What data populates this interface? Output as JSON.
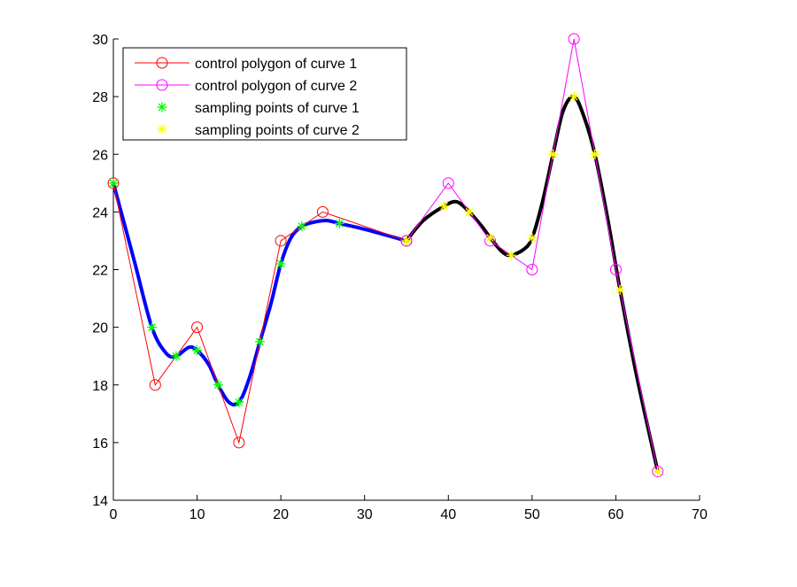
{
  "chart_data": {
    "type": "line",
    "title": "",
    "xlabel": "",
    "ylabel": "",
    "xlim": [
      0,
      70
    ],
    "ylim": [
      14,
      30
    ],
    "xticks": [
      "0",
      "10",
      "20",
      "30",
      "40",
      "50",
      "60",
      "70"
    ],
    "yticks": [
      "14",
      "16",
      "18",
      "20",
      "22",
      "24",
      "26",
      "28",
      "30"
    ],
    "grid": false,
    "legend_position": "top-left",
    "colors": {
      "polygon1": "#ff0000",
      "polygon2": "#ff00ff",
      "curve1": "#0000ff",
      "curve2": "#000000",
      "samples1": "#00ff00",
      "samples2": "#ffff00",
      "axes": "#000000"
    },
    "series": [
      {
        "name": "control polygon of curve 1",
        "marker": "circle",
        "x": [
          0,
          5,
          10,
          15,
          20,
          25,
          35
        ],
        "y": [
          25,
          18,
          20,
          16,
          23,
          24,
          23
        ]
      },
      {
        "name": "control polygon of curve 2",
        "marker": "circle",
        "x": [
          35,
          40,
          45,
          50,
          55,
          60,
          65
        ],
        "y": [
          23,
          25,
          23,
          22,
          30,
          22,
          15
        ]
      },
      {
        "name": "sampling points of curve 1",
        "marker": "asterisk",
        "x": [
          0,
          4.6,
          7.5,
          10,
          12.5,
          15,
          17.5,
          20,
          22.5,
          27,
          35
        ],
        "y": [
          25,
          20,
          19,
          19.2,
          18,
          17.4,
          19.5,
          22.2,
          23.5,
          23.6,
          23
        ]
      },
      {
        "name": "sampling points of curve 2",
        "marker": "asterisk",
        "x": [
          35,
          39.5,
          42.5,
          45,
          47.5,
          50,
          52.5,
          55,
          57.5,
          60.5,
          65
        ],
        "y": [
          23,
          24.2,
          24,
          23.1,
          22.5,
          23.1,
          26,
          28,
          26,
          21.3,
          15
        ]
      }
    ],
    "curves": [
      {
        "x": [
          0,
          2.5,
          4.6,
          6.3,
          7.5,
          9,
          10,
          11.4,
          12.5,
          13.8,
          15,
          16.2,
          17.5,
          18.8,
          20,
          21.2,
          22.5,
          24,
          25.5,
          27,
          30,
          35
        ],
        "y": [
          25,
          22.3,
          20,
          19.1,
          19,
          19.3,
          19.2,
          18.7,
          18,
          17.4,
          17.4,
          18.2,
          19.5,
          20.8,
          22.2,
          23.1,
          23.5,
          23.65,
          23.7,
          23.6,
          23.4,
          23
        ]
      },
      {
        "x": [
          35,
          37,
          39.5,
          41,
          42.5,
          44,
          45,
          46.5,
          47.5,
          49,
          50,
          51.2,
          52.5,
          53.7,
          55,
          56.2,
          57.5,
          59,
          60.5,
          62.5,
          65
        ],
        "y": [
          23,
          23.7,
          24.2,
          24.35,
          24,
          23.5,
          23.1,
          22.6,
          22.5,
          22.7,
          23.1,
          24.3,
          26,
          27.5,
          28,
          27.3,
          26,
          23.8,
          21.3,
          18.3,
          15
        ]
      }
    ]
  }
}
